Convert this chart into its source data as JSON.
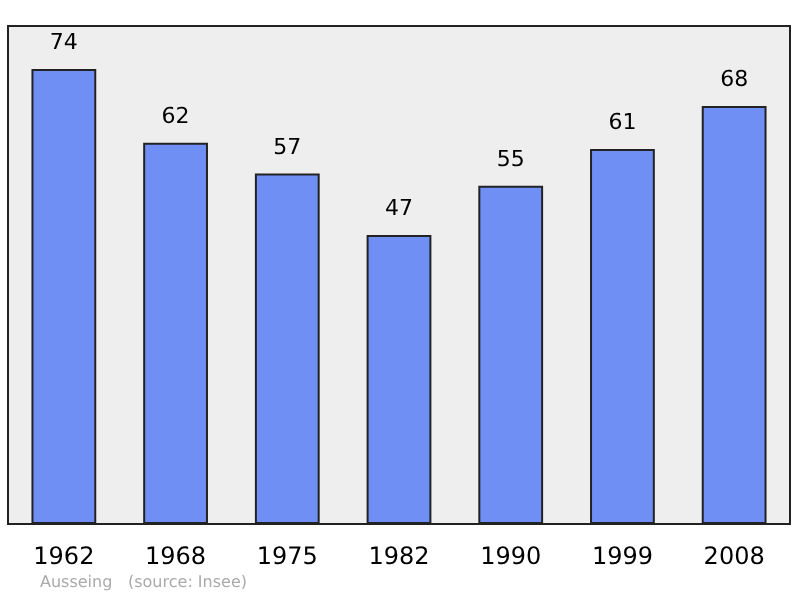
{
  "chart_data": {
    "type": "bar",
    "categories": [
      "1962",
      "1968",
      "1975",
      "1982",
      "1990",
      "1999",
      "2008"
    ],
    "values": [
      74,
      62,
      57,
      47,
      55,
      61,
      68
    ],
    "color": "#6f8ff5",
    "data_labels": true,
    "ylim": [
      0,
      81
    ],
    "tick_labels": "x",
    "grid": false,
    "annotations": [
      "Ausseing",
      "(source: Insee)"
    ]
  }
}
